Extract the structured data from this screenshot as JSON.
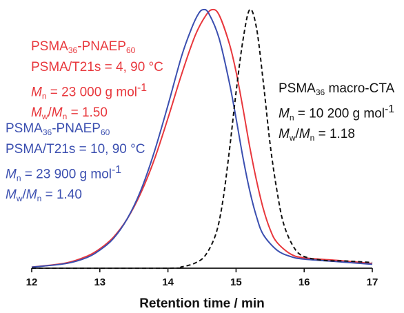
{
  "chart_data": {
    "type": "line",
    "xlabel": "Retention time / min",
    "ylabel": "",
    "xlim": [
      12,
      17
    ],
    "ylim": [
      0,
      1
    ],
    "xticks": [
      "12",
      "13",
      "14",
      "15",
      "16",
      "17"
    ],
    "grid": false,
    "series": [
      {
        "color": "#e8383d",
        "dash": "solid",
        "x": [
          12.0,
          12.5,
          12.8,
          13.0,
          13.2,
          13.4,
          13.6,
          13.8,
          14.0,
          14.2,
          14.4,
          14.55,
          14.65,
          14.75,
          14.9,
          15.0,
          15.1,
          15.2,
          15.3,
          15.4,
          15.5,
          15.6,
          15.8,
          16.0,
          16.5,
          17.0
        ],
        "y": [
          0.004,
          0.02,
          0.045,
          0.075,
          0.12,
          0.19,
          0.29,
          0.42,
          0.58,
          0.75,
          0.9,
          0.975,
          1.0,
          0.98,
          0.87,
          0.76,
          0.62,
          0.47,
          0.34,
          0.23,
          0.15,
          0.1,
          0.055,
          0.04,
          0.03,
          0.018
        ]
      },
      {
        "color": "#3b4fb0",
        "dash": "solid",
        "x": [
          12.0,
          12.5,
          12.8,
          13.0,
          13.2,
          13.4,
          13.6,
          13.8,
          14.0,
          14.2,
          14.35,
          14.45,
          14.52,
          14.6,
          14.75,
          14.9,
          15.0,
          15.1,
          15.2,
          15.3,
          15.4,
          15.6,
          15.8,
          16.0,
          16.5,
          17.0
        ],
        "y": [
          0.004,
          0.018,
          0.04,
          0.07,
          0.115,
          0.19,
          0.3,
          0.45,
          0.63,
          0.82,
          0.93,
          0.985,
          1.0,
          0.985,
          0.89,
          0.72,
          0.58,
          0.43,
          0.3,
          0.2,
          0.13,
          0.07,
          0.045,
          0.035,
          0.025,
          0.015
        ]
      },
      {
        "color": "#111111",
        "dash": "dashed",
        "x": [
          12.0,
          14.0,
          14.2,
          14.4,
          14.55,
          14.7,
          14.8,
          14.9,
          15.0,
          15.1,
          15.2,
          15.3,
          15.4,
          15.5,
          15.6,
          15.7,
          15.85,
          16.0,
          16.3,
          16.6,
          17.0
        ],
        "y": [
          0.0,
          0.0,
          0.005,
          0.02,
          0.05,
          0.13,
          0.25,
          0.45,
          0.68,
          0.88,
          1.0,
          0.93,
          0.72,
          0.48,
          0.3,
          0.17,
          0.08,
          0.045,
          0.03,
          0.028,
          0.022
        ]
      }
    ]
  },
  "annotations": {
    "red": {
      "color": "#e8383d",
      "line1": {
        "a": "PSMA",
        "s1": "36",
        "b": "-PNAEP",
        "s2": "60"
      },
      "line2": "PSMA/T21s = 4, 90 °C",
      "line3": {
        "sym": "M",
        "sub": "n",
        "rest": " = 23 000 g mol",
        "sup": "-1"
      },
      "line4": {
        "sym1": "M",
        "sub1": "w",
        "mid": "/",
        "sym2": "M",
        "sub2": "n",
        "rest": " = 1.50"
      }
    },
    "blue": {
      "color": "#3b4fb0",
      "line1": {
        "a": "PSMA",
        "s1": "36",
        "b": "-PNAEP",
        "s2": "60"
      },
      "line2": "PSMA/T21s = 10, 90 °C",
      "line3": {
        "sym": "M",
        "sub": "n",
        "rest": " = 23 900 g mol",
        "sup": "-1"
      },
      "line4": {
        "sym1": "M",
        "sub1": "w",
        "mid": "/",
        "sym2": "M",
        "sub2": "n",
        "rest": " = 1.40"
      }
    },
    "black": {
      "color": "#111111",
      "line1": {
        "a": "PSMA",
        "s1": "36",
        "b": " macro-CTA"
      },
      "line2": {
        "sym": "M",
        "sub": "n",
        "rest": " = 10 200 g mol",
        "sup": "-1"
      },
      "line3": {
        "sym1": "M",
        "sub1": "w",
        "mid": "/",
        "sym2": "M",
        "sub2": "n",
        "rest": " = 1.18"
      }
    }
  }
}
